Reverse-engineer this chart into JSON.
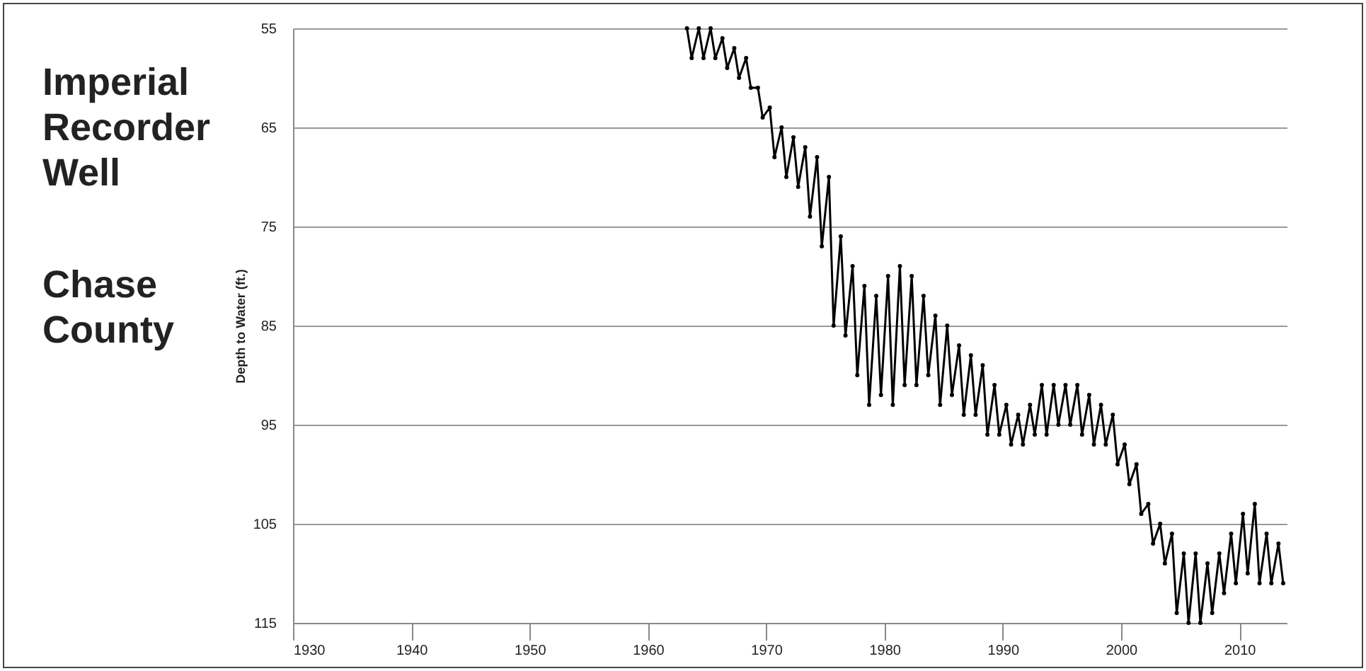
{
  "chart_data": {
    "type": "line",
    "title": "Imperial Recorder Well",
    "subtitle": "Chase County",
    "ylabel": "Depth to Water (ft.)",
    "x": [
      1963.3,
      1963.7,
      1964.3,
      1964.7,
      1965.3,
      1965.7,
      1966.3,
      1966.7,
      1967.3,
      1967.7,
      1968.3,
      1968.7,
      1969.3,
      1969.7,
      1970.3,
      1970.7,
      1971.3,
      1971.7,
      1972.3,
      1972.7,
      1973.3,
      1973.7,
      1974.3,
      1974.7,
      1975.3,
      1975.7,
      1976.3,
      1976.7,
      1977.3,
      1977.7,
      1978.3,
      1978.7,
      1979.3,
      1979.7,
      1980.3,
      1980.7,
      1981.3,
      1981.7,
      1982.3,
      1982.7,
      1983.3,
      1983.7,
      1984.3,
      1984.7,
      1985.3,
      1985.7,
      1986.3,
      1986.7,
      1987.3,
      1987.7,
      1988.3,
      1988.7,
      1989.3,
      1989.7,
      1990.3,
      1990.7,
      1991.3,
      1991.7,
      1992.3,
      1992.7,
      1993.3,
      1993.7,
      1994.3,
      1994.7,
      1995.3,
      1995.7,
      1996.3,
      1996.7,
      1997.3,
      1997.7,
      1998.3,
      1998.7,
      1999.3,
      1999.7,
      2000.3,
      2000.7,
      2001.3,
      2001.7,
      2002.3,
      2002.7,
      2003.3,
      2003.7,
      2004.3,
      2004.7,
      2005.3,
      2005.7,
      2006.3,
      2006.7,
      2007.3,
      2007.7,
      2008.3,
      2008.7,
      2009.3,
      2009.7,
      2010.3,
      2010.7,
      2011.3,
      2011.7,
      2012.3,
      2012.7,
      2013.3,
      2013.7
    ],
    "series": [
      {
        "color": "#000000",
        "values": [
          55,
          58,
          55,
          58,
          55,
          58,
          56,
          59,
          57,
          60,
          58,
          61,
          61,
          64,
          63,
          68,
          65,
          70,
          66,
          71,
          67,
          74,
          68,
          77,
          70,
          85,
          76,
          86,
          79,
          90,
          81,
          93,
          82,
          92,
          80,
          93,
          79,
          91,
          80,
          91,
          82,
          90,
          84,
          93,
          85,
          92,
          87,
          94,
          88,
          94,
          89,
          96,
          91,
          96,
          93,
          97,
          94,
          97,
          93,
          96,
          91,
          96,
          91,
          95,
          91,
          95,
          91,
          96,
          92,
          97,
          93,
          97,
          94,
          99,
          97,
          101,
          99,
          104,
          103,
          107,
          105,
          109,
          106,
          114,
          108,
          115,
          108,
          115,
          109,
          114,
          108,
          112,
          106,
          111,
          104,
          110,
          103,
          111,
          106,
          111,
          107,
          111
        ]
      }
    ],
    "xlim": [
      1930,
      2014
    ],
    "xticks": [
      1930,
      1940,
      1950,
      1960,
      1970,
      1980,
      1990,
      2000,
      2010
    ],
    "ylim": [
      115,
      55
    ],
    "yticks": [
      55,
      65,
      75,
      85,
      95,
      105,
      115
    ],
    "grid": "y",
    "marker": "circle",
    "line_style": "solid"
  }
}
